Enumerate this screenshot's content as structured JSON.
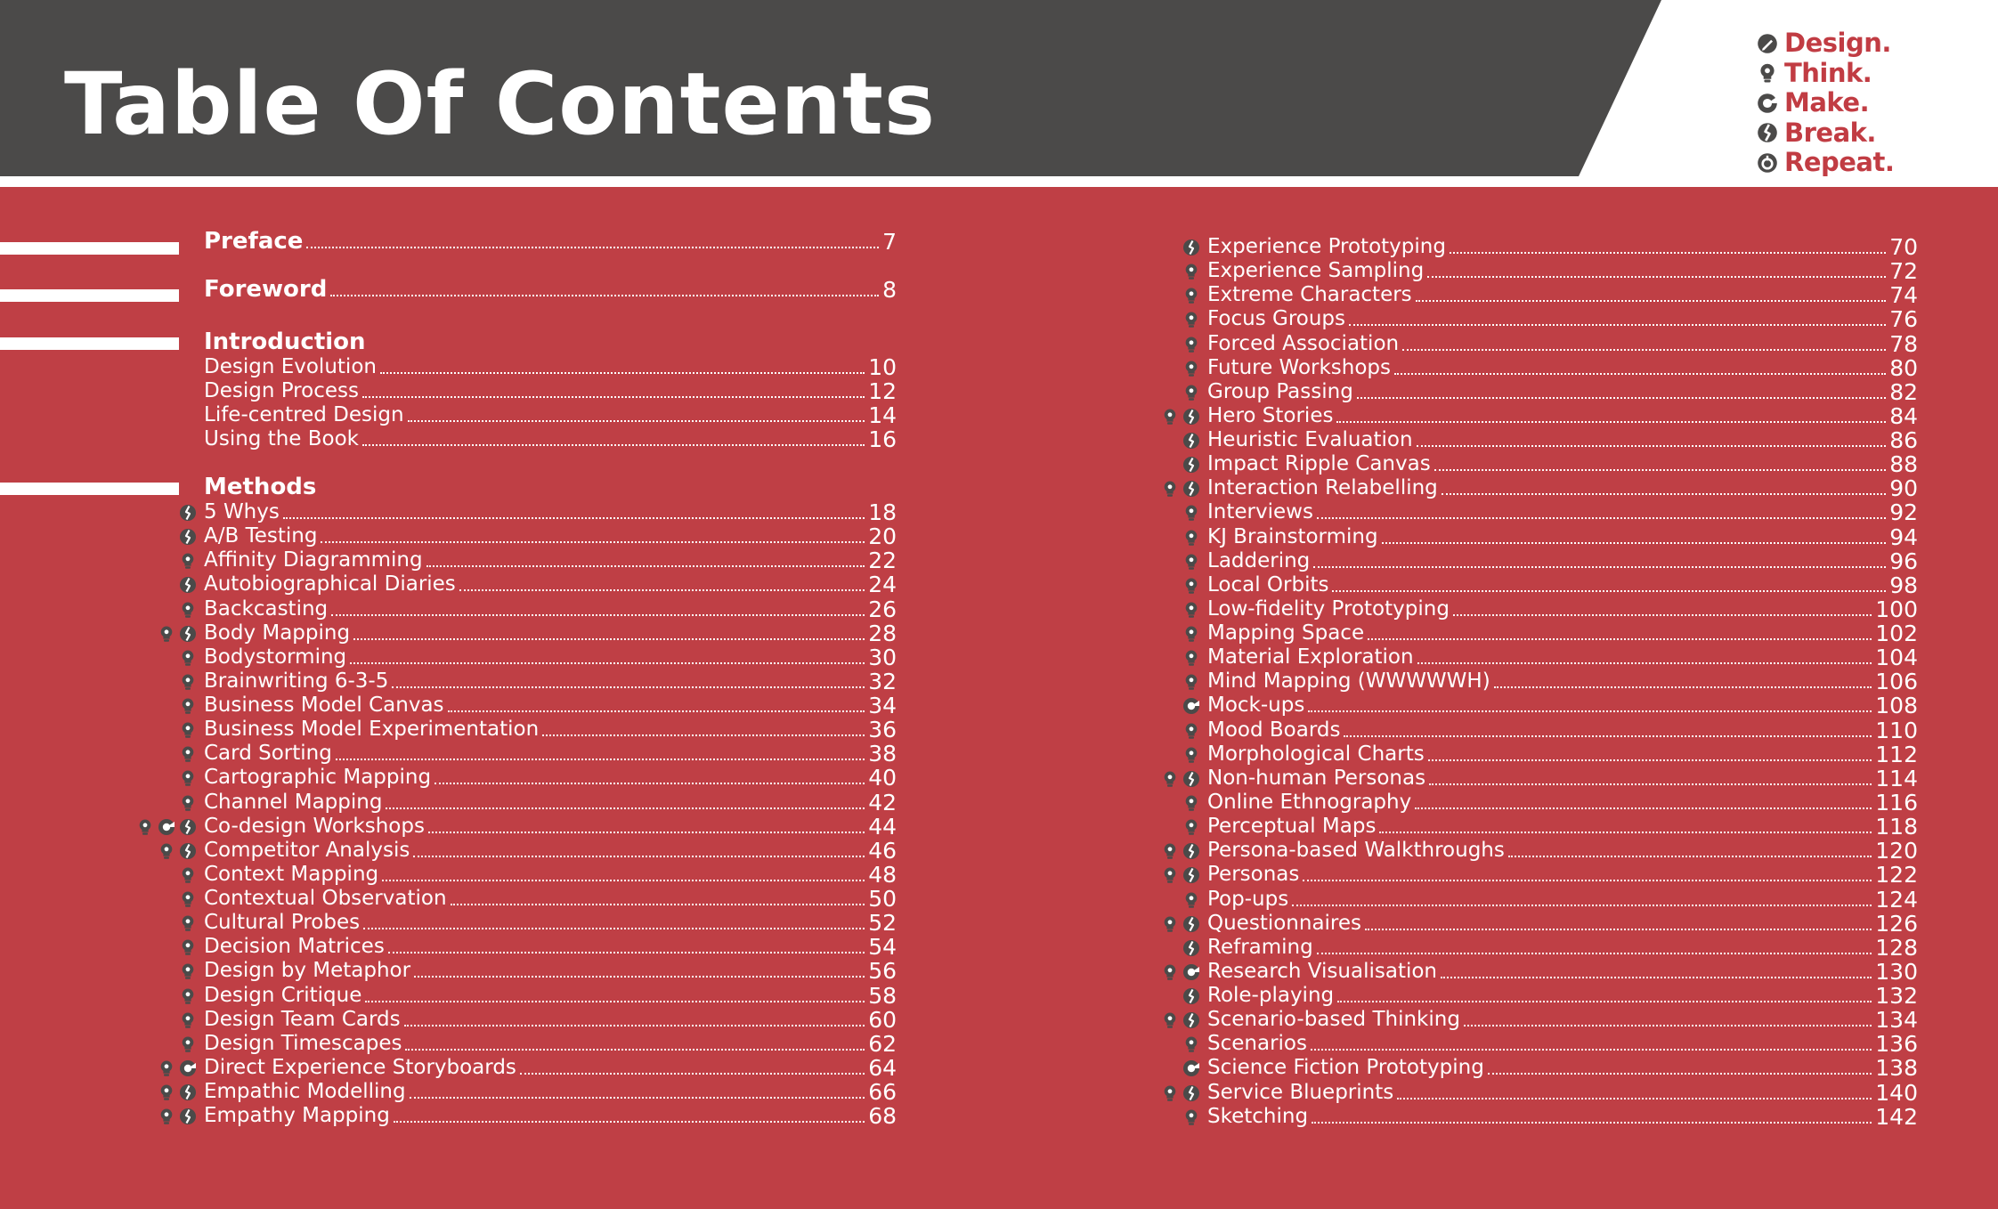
{
  "title": "Table Of Contents",
  "logo": [
    {
      "word": "Design.",
      "icon": "design-icon"
    },
    {
      "word": "Think.",
      "icon": "think-icon"
    },
    {
      "word": "Make.",
      "icon": "make-icon"
    },
    {
      "word": "Break.",
      "icon": "break-icon"
    },
    {
      "word": "Repeat.",
      "icon": "repeat-icon"
    }
  ],
  "colors": {
    "header": "#4b4a49",
    "background": "#bf3f45",
    "logo": "#c13c43",
    "icon": "#4b4a49",
    "text": "#ffffff"
  },
  "sections": {
    "preface": {
      "label": "Preface",
      "page": "7"
    },
    "foreword": {
      "label": "Foreword",
      "page": "8"
    },
    "introduction": {
      "label": "Introduction",
      "items": [
        {
          "label": "Design Evolution",
          "page": "10"
        },
        {
          "label": "Design Process",
          "page": "12"
        },
        {
          "label": "Life-centred Design",
          "page": "14"
        },
        {
          "label": "Using the Book",
          "page": "16"
        }
      ]
    },
    "methods": {
      "label": "Methods"
    }
  },
  "methods_left": [
    {
      "label": "5 Whys",
      "page": "18",
      "icons": [
        "break-icon"
      ]
    },
    {
      "label": "A/B Testing",
      "page": "20",
      "icons": [
        "break-icon"
      ]
    },
    {
      "label": "Affinity Diagramming",
      "page": "22",
      "icons": [
        "think-icon"
      ]
    },
    {
      "label": "Autobiographical Diaries",
      "page": "24",
      "icons": [
        "break-icon"
      ]
    },
    {
      "label": "Backcasting",
      "page": "26",
      "icons": [
        "think-icon"
      ]
    },
    {
      "label": "Body Mapping",
      "page": "28",
      "icons": [
        "think-icon",
        "break-icon"
      ]
    },
    {
      "label": "Bodystorming",
      "page": "30",
      "icons": [
        "think-icon"
      ]
    },
    {
      "label": "Brainwriting 6-3-5",
      "page": "32",
      "icons": [
        "think-icon"
      ]
    },
    {
      "label": "Business Model Canvas",
      "page": "34",
      "icons": [
        "think-icon"
      ]
    },
    {
      "label": "Business Model Experimentation",
      "page": "36",
      "icons": [
        "think-icon"
      ]
    },
    {
      "label": "Card Sorting",
      "page": "38",
      "icons": [
        "think-icon"
      ]
    },
    {
      "label": "Cartographic Mapping",
      "page": "40",
      "icons": [
        "think-icon"
      ]
    },
    {
      "label": "Channel Mapping",
      "page": "42",
      "icons": [
        "think-icon"
      ]
    },
    {
      "label": "Co-design Workshops",
      "page": "44",
      "icons": [
        "think-icon",
        "make-icon",
        "break-icon"
      ]
    },
    {
      "label": "Competitor Analysis",
      "page": "46",
      "icons": [
        "think-icon",
        "break-icon"
      ]
    },
    {
      "label": "Context Mapping",
      "page": "48",
      "icons": [
        "think-icon"
      ]
    },
    {
      "label": "Contextual Observation",
      "page": "50",
      "icons": [
        "think-icon"
      ]
    },
    {
      "label": "Cultural Probes",
      "page": "52",
      "icons": [
        "think-icon"
      ]
    },
    {
      "label": "Decision Matrices",
      "page": "54",
      "icons": [
        "think-icon"
      ]
    },
    {
      "label": "Design by Metaphor",
      "page": "56",
      "icons": [
        "think-icon"
      ]
    },
    {
      "label": "Design Critique",
      "page": "58",
      "icons": [
        "think-icon"
      ]
    },
    {
      "label": "Design Team Cards",
      "page": "60",
      "icons": [
        "think-icon"
      ]
    },
    {
      "label": "Design Timescapes",
      "page": "62",
      "icons": [
        "think-icon"
      ]
    },
    {
      "label": "Direct Experience Storyboards",
      "page": "64",
      "icons": [
        "think-icon",
        "make-icon"
      ]
    },
    {
      "label": "Empathic Modelling",
      "page": "66",
      "icons": [
        "think-icon",
        "break-icon"
      ]
    },
    {
      "label": "Empathy Mapping",
      "page": "68",
      "icons": [
        "think-icon",
        "break-icon"
      ]
    }
  ],
  "methods_right": [
    {
      "label": "Experience Prototyping",
      "page": "70",
      "icons": [
        "break-icon"
      ]
    },
    {
      "label": "Experience Sampling",
      "page": "72",
      "icons": [
        "think-icon"
      ]
    },
    {
      "label": "Extreme Characters",
      "page": "74",
      "icons": [
        "think-icon"
      ]
    },
    {
      "label": "Focus Groups",
      "page": "76",
      "icons": [
        "think-icon"
      ]
    },
    {
      "label": "Forced Association",
      "page": "78",
      "icons": [
        "think-icon"
      ]
    },
    {
      "label": "Future Workshops",
      "page": "80",
      "icons": [
        "think-icon"
      ]
    },
    {
      "label": "Group Passing",
      "page": "82",
      "icons": [
        "think-icon"
      ]
    },
    {
      "label": "Hero Stories",
      "page": "84",
      "icons": [
        "think-icon",
        "break-icon"
      ]
    },
    {
      "label": "Heuristic Evaluation",
      "page": "86",
      "icons": [
        "break-icon"
      ]
    },
    {
      "label": "Impact Ripple Canvas",
      "page": "88",
      "icons": [
        "break-icon"
      ]
    },
    {
      "label": "Interaction Relabelling",
      "page": "90",
      "icons": [
        "think-icon",
        "break-icon"
      ]
    },
    {
      "label": "Interviews",
      "page": "92",
      "icons": [
        "think-icon"
      ]
    },
    {
      "label": "KJ Brainstorming",
      "page": "94",
      "icons": [
        "think-icon"
      ]
    },
    {
      "label": "Laddering",
      "page": "96",
      "icons": [
        "think-icon"
      ]
    },
    {
      "label": "Local Orbits",
      "page": "98",
      "icons": [
        "think-icon"
      ]
    },
    {
      "label": "Low-fidelity Prototyping",
      "page": "100",
      "icons": [
        "think-icon"
      ]
    },
    {
      "label": "Mapping Space",
      "page": "102",
      "icons": [
        "think-icon"
      ]
    },
    {
      "label": "Material Exploration",
      "page": "104",
      "icons": [
        "think-icon"
      ]
    },
    {
      "label": "Mind Mapping (WWWWWH)",
      "page": "106",
      "icons": [
        "think-icon"
      ]
    },
    {
      "label": "Mock-ups",
      "page": "108",
      "icons": [
        "make-icon"
      ]
    },
    {
      "label": "Mood Boards",
      "page": "110",
      "icons": [
        "think-icon"
      ]
    },
    {
      "label": "Morphological Charts",
      "page": "112",
      "icons": [
        "think-icon"
      ]
    },
    {
      "label": "Non-human Personas",
      "page": "114",
      "icons": [
        "think-icon",
        "break-icon"
      ]
    },
    {
      "label": "Online Ethnography",
      "page": "116",
      "icons": [
        "think-icon"
      ]
    },
    {
      "label": "Perceptual Maps",
      "page": "118",
      "icons": [
        "think-icon"
      ]
    },
    {
      "label": "Persona-based Walkthroughs",
      "page": "120",
      "icons": [
        "think-icon",
        "break-icon"
      ]
    },
    {
      "label": "Personas",
      "page": "122",
      "icons": [
        "think-icon",
        "break-icon"
      ]
    },
    {
      "label": "Pop-ups",
      "page": "124",
      "icons": [
        "think-icon"
      ]
    },
    {
      "label": "Questionnaires",
      "page": "126",
      "icons": [
        "think-icon",
        "break-icon"
      ]
    },
    {
      "label": "Reframing",
      "page": "128",
      "icons": [
        "break-icon"
      ]
    },
    {
      "label": "Research Visualisation",
      "page": "130",
      "icons": [
        "think-icon",
        "make-icon"
      ]
    },
    {
      "label": "Role-playing",
      "page": "132",
      "icons": [
        "break-icon"
      ]
    },
    {
      "label": "Scenario-based Thinking",
      "page": "134",
      "icons": [
        "think-icon",
        "break-icon"
      ]
    },
    {
      "label": "Scenarios",
      "page": "136",
      "icons": [
        "think-icon"
      ]
    },
    {
      "label": "Science Fiction Prototyping",
      "page": "138",
      "icons": [
        "make-icon"
      ]
    },
    {
      "label": "Service Blueprints",
      "page": "140",
      "icons": [
        "think-icon",
        "break-icon"
      ]
    },
    {
      "label": "Sketching",
      "page": "142",
      "icons": [
        "think-icon"
      ]
    }
  ]
}
